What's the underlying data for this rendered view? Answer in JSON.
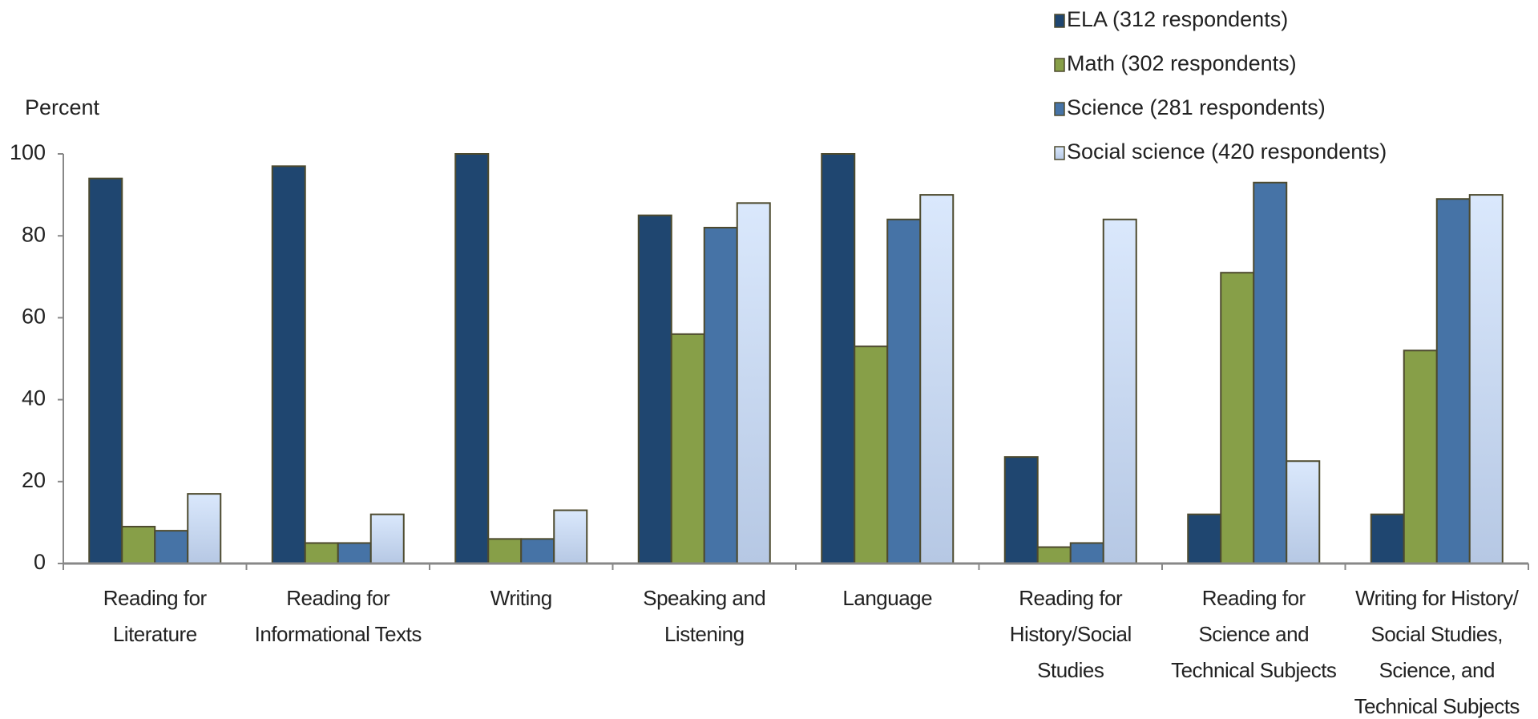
{
  "chart_data": {
    "type": "bar",
    "y_label": "Percent",
    "categories": [
      "Reading for\nLiterature",
      "Reading for\nInformational Texts",
      "Writing",
      "Speaking and\nListening",
      "Language",
      "Reading for\nHistory/Social\nStudies",
      "Reading for\nScience and\nTechnical Subjects",
      "Writing for History/\nSocial Studies,\nScience, and\nTechnical Subjects"
    ],
    "series": [
      {
        "name": "ELA (312 respondents)",
        "color": "#1f4670",
        "values": [
          94,
          97,
          100,
          85,
          100,
          26,
          12,
          12
        ]
      },
      {
        "name": "Math (302 respondents)",
        "color": "#879f48",
        "values": [
          9,
          5,
          6,
          56,
          53,
          4,
          71,
          52
        ]
      },
      {
        "name": "Science (281 respondents)",
        "color": "#4673a6",
        "values": [
          8,
          5,
          6,
          82,
          84,
          5,
          93,
          89
        ]
      },
      {
        "name": "Social science (420 respondents)",
        "color": "#cfdff5",
        "values": [
          17,
          12,
          13,
          88,
          90,
          84,
          25,
          90
        ]
      }
    ],
    "ylim": [
      0,
      100
    ],
    "yticks": [
      0,
      20,
      40,
      60,
      80,
      100
    ],
    "grid": false,
    "legend": "top-right"
  }
}
